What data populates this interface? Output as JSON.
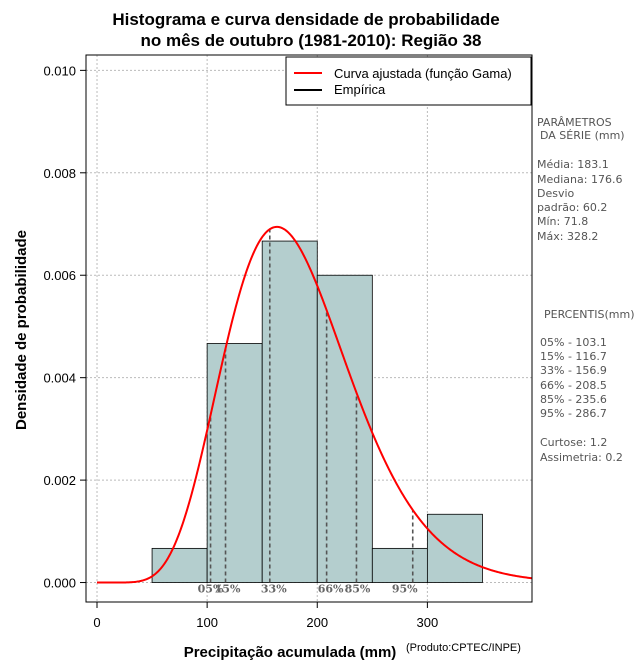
{
  "chart_data": {
    "type": "histogram",
    "title_line1": "Histograma e curva densidade de probabilidade",
    "title_line2": "no mês de outubro (1981-2010): Região 38",
    "xlabel": "Precipitação acumulada (mm)",
    "ylabel": "Densidade de probabilidade",
    "credit": "(Produto:CPTEC/INPE)",
    "xlim": [
      -10,
      395
    ],
    "ylim": [
      -0.00038,
      0.0103
    ],
    "x_ticks": [
      0,
      100,
      200,
      300
    ],
    "x_tick_labels": [
      "0",
      "100",
      "200",
      "300"
    ],
    "y_ticks": [
      0.0,
      0.002,
      0.004,
      0.006,
      0.008,
      0.01
    ],
    "y_tick_labels": [
      "0.000",
      "0.002",
      "0.004",
      "0.006",
      "0.008",
      "0.010"
    ],
    "grid": true,
    "bins": [
      {
        "start": 50,
        "end": 100,
        "density": 0.000667
      },
      {
        "start": 100,
        "end": 150,
        "density": 0.004667
      },
      {
        "start": 150,
        "end": 200,
        "density": 0.006667
      },
      {
        "start": 200,
        "end": 250,
        "density": 0.006
      },
      {
        "start": 250,
        "end": 300,
        "density": 0.000667
      },
      {
        "start": 300,
        "end": 350,
        "density": 0.001333
      }
    ],
    "gamma_fit": {
      "shape": 9.25,
      "scale": 19.8
    },
    "percentiles": [
      {
        "label": "05%",
        "value": 103.1
      },
      {
        "label": "15%",
        "value": 116.7
      },
      {
        "label": "33%",
        "value": 156.9
      },
      {
        "label": "66%",
        "value": 208.5
      },
      {
        "label": "85%",
        "value": 235.6
      },
      {
        "label": "95%",
        "value": 286.7
      }
    ],
    "legend": {
      "position": "top-right",
      "entries": [
        {
          "label": "Curva ajustada (função Gama)",
          "color": "#ff0000"
        },
        {
          "label": "Empírica",
          "color": "#000000"
        }
      ]
    },
    "colors": {
      "bar_fill": "#b4cece",
      "curve": "#ff0000",
      "percentile_line": "#555555"
    }
  },
  "side_panel": {
    "params_heading_1": "PARÂMETROS",
    "params_heading_2": "DA SÉRIE (mm)",
    "media": "Média:  183.1",
    "mediana": "Mediana:  176.6",
    "desvio_1": "Desvio",
    "desvio_2": "padrão:  60.2",
    "min": "Mín:  71.8",
    "max": "Máx:  328.2",
    "percentis_heading": "PERCENTIS(mm)",
    "p05": "05% -  103.1",
    "p15": "15% -  116.7",
    "p33": "33% -  156.9",
    "p66": "66% -  208.5",
    "p85": "85% -  235.6",
    "p95": "95% -  286.7",
    "curtose": "Curtose:  1.2",
    "assimetria": "Assimetria:  0.2"
  }
}
